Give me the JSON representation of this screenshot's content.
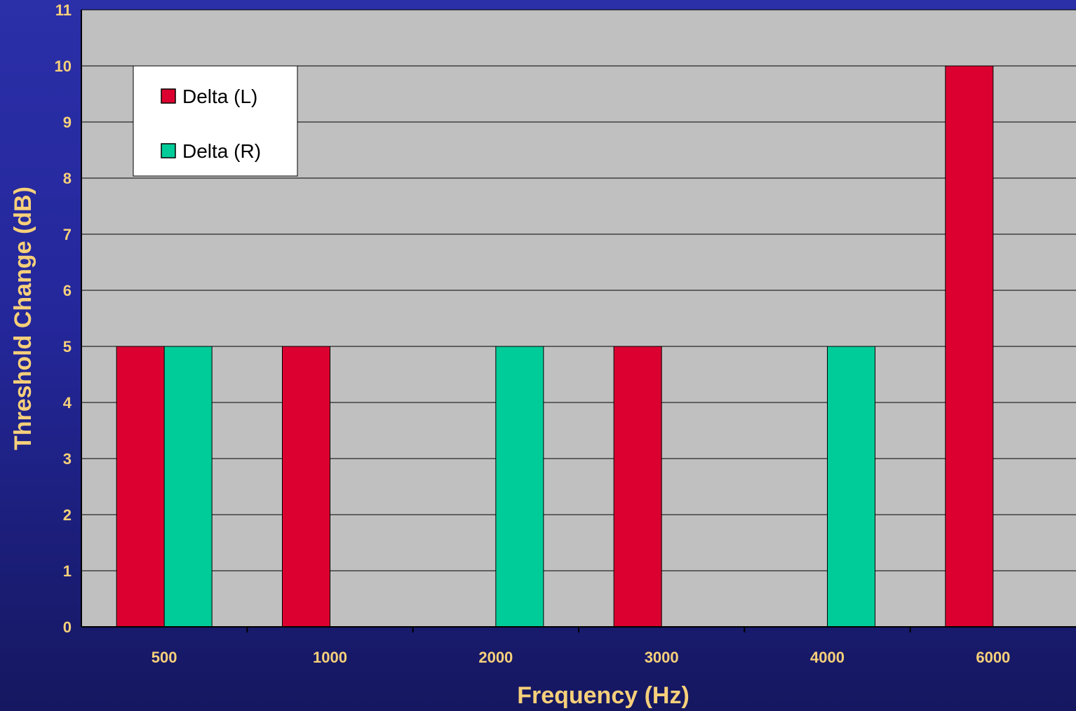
{
  "colors": {
    "plot_bg": "#c0c0c0",
    "gridline": "#000000",
    "axis_text": "#f7d07a",
    "series_L": "#dc0030",
    "series_R": "#00cc99",
    "legend_bg": "#ffffff"
  },
  "chart_data": {
    "type": "bar",
    "categories": [
      "500",
      "1000",
      "2000",
      "3000",
      "4000",
      "6000"
    ],
    "series": [
      {
        "name": "Delta (L)",
        "values": [
          5,
          5,
          0,
          5,
          0,
          10
        ]
      },
      {
        "name": "Delta (R)",
        "values": [
          5,
          0,
          5,
          0,
          5,
          0
        ]
      }
    ],
    "xlabel": "Frequency (Hz)",
    "ylabel": "Threshold Change (dB)",
    "ylim": [
      0,
      11
    ],
    "yticks": [
      0,
      1,
      2,
      3,
      4,
      5,
      6,
      7,
      8,
      9,
      10,
      11
    ],
    "grid": true,
    "legend_position": "top-left"
  }
}
